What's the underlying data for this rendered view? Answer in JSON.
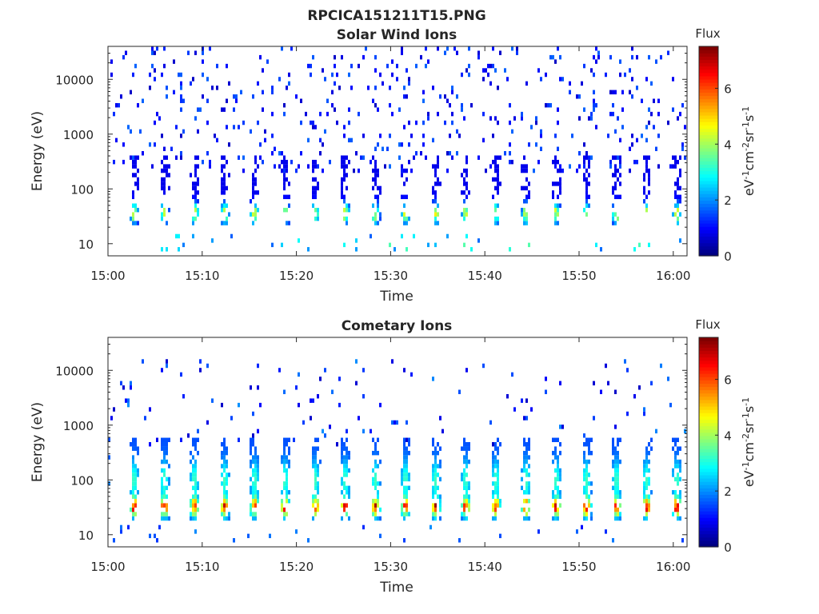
{
  "figure": {
    "title": "RPCICA151211T15.PNG"
  },
  "chart_data": [
    {
      "type": "heatmap",
      "title": "Solar Wind Ions",
      "xlabel": "Time",
      "ylabel": "Energy (eV)",
      "x_ticks": [
        "15:00",
        "15:10",
        "15:20",
        "15:30",
        "15:40",
        "15:50",
        "16:00"
      ],
      "y_ticks": [
        "10",
        "100",
        "1000",
        "10000"
      ],
      "y_scale": "log",
      "y_range": [
        6,
        40000
      ],
      "colorbar": {
        "label": "Flux",
        "units_label": "eV-1cm-2sr-1s-1",
        "ticks": [
          "0",
          "2",
          "4",
          "6"
        ],
        "range": [
          0,
          7.5
        ],
        "colormap": "jet"
      },
      "summary": {
        "description_values": "Sparse scattered counts (flux ~0.5-1.5) above ~200 eV; periodic bursts every ~3.2 min between ~20-400 eV with peak flux ~3-4 near 25-45 eV; occasional counts near 8-16 eV.",
        "burst_period_min": 3.2,
        "burst_peak_flux": 4,
        "burst_peak_energy_ev": [
          25,
          45
        ]
      }
    },
    {
      "type": "heatmap",
      "title": "Cometary Ions",
      "xlabel": "Time",
      "ylabel": "Energy (eV)",
      "x_ticks": [
        "15:00",
        "15:10",
        "15:20",
        "15:30",
        "15:40",
        "15:50",
        "16:00"
      ],
      "y_ticks": [
        "10",
        "100",
        "1000",
        "10000"
      ],
      "y_scale": "log",
      "y_range": [
        6,
        40000
      ],
      "colorbar": {
        "label": "Flux",
        "units_label": "eV-1cm-2sr-1s-1",
        "ticks": [
          "0",
          "2",
          "4",
          "6"
        ],
        "range": [
          0,
          7.5
        ],
        "colormap": "jet"
      },
      "summary": {
        "burst_period_min": 3.2,
        "burst_peak_flux": 7,
        "burst_peak_energy_ev": [
          22,
          45
        ],
        "burst_top_energy_ev": 600
      }
    }
  ]
}
